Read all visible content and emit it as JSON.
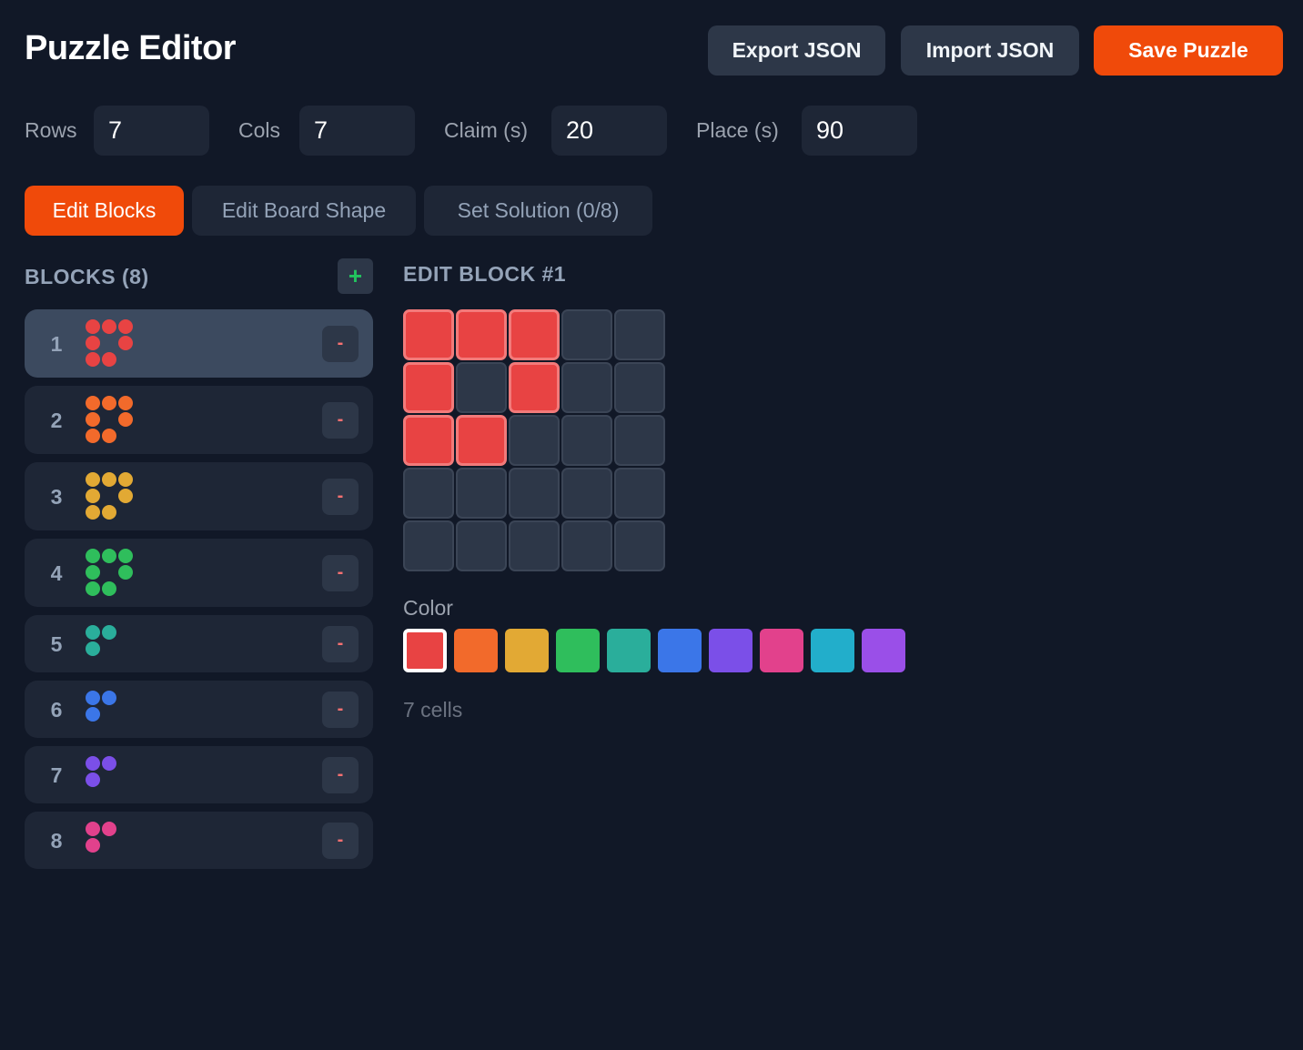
{
  "header": {
    "title": "Puzzle Editor",
    "export_label": "Export JSON",
    "import_label": "Import JSON",
    "save_label": "Save Puzzle"
  },
  "settings": {
    "rows_label": "Rows",
    "rows": "7",
    "cols_label": "Cols",
    "cols": "7",
    "claim_label": "Claim (s)",
    "claim": "20",
    "place_label": "Place (s)",
    "place": "90"
  },
  "tabs": [
    {
      "label": "Edit Blocks",
      "active": true
    },
    {
      "label": "Edit Board Shape",
      "active": false
    },
    {
      "label": "Set Solution (0/8)",
      "active": false
    }
  ],
  "blocks_panel": {
    "title": "BLOCKS (8)",
    "add_icon": "plus-icon",
    "remove_label": "-",
    "items": [
      {
        "number": "1",
        "color": "#e84343",
        "shape": [
          [
            1,
            1,
            1
          ],
          [
            1,
            0,
            1
          ],
          [
            1,
            1,
            0
          ]
        ],
        "selected": true
      },
      {
        "number": "2",
        "color": "#f26a2b",
        "shape": [
          [
            1,
            1,
            1
          ],
          [
            1,
            0,
            1
          ],
          [
            1,
            1,
            0
          ]
        ]
      },
      {
        "number": "3",
        "color": "#e2a934",
        "shape": [
          [
            1,
            1,
            1
          ],
          [
            1,
            0,
            1
          ],
          [
            1,
            1,
            0
          ]
        ]
      },
      {
        "number": "4",
        "color": "#2fbe5c",
        "shape": [
          [
            1,
            1,
            1
          ],
          [
            1,
            0,
            1
          ],
          [
            1,
            1,
            0
          ]
        ]
      },
      {
        "number": "5",
        "color": "#2aae9b",
        "shape": [
          [
            1,
            1
          ],
          [
            1,
            0
          ]
        ]
      },
      {
        "number": "6",
        "color": "#3b76e8",
        "shape": [
          [
            1,
            1
          ],
          [
            1,
            0
          ]
        ]
      },
      {
        "number": "7",
        "color": "#7b4fe8",
        "shape": [
          [
            1,
            1
          ],
          [
            1,
            0
          ]
        ]
      },
      {
        "number": "8",
        "color": "#e2418c",
        "shape": [
          [
            1,
            1
          ],
          [
            1,
            0
          ]
        ]
      }
    ]
  },
  "editor": {
    "title": "EDIT BLOCK #1",
    "grid": [
      [
        1,
        1,
        1,
        0,
        0
      ],
      [
        1,
        0,
        1,
        0,
        0
      ],
      [
        1,
        1,
        0,
        0,
        0
      ],
      [
        0,
        0,
        0,
        0,
        0
      ],
      [
        0,
        0,
        0,
        0,
        0
      ]
    ],
    "color_label": "Color",
    "colors": [
      "#e84343",
      "#f26a2b",
      "#e2a934",
      "#2fbe5c",
      "#2aae9b",
      "#3b76e8",
      "#7b4fe8",
      "#e2418c",
      "#22aecb",
      "#9a4fe8"
    ],
    "selected_color": "#e84343",
    "cells_text": "7 cells"
  }
}
